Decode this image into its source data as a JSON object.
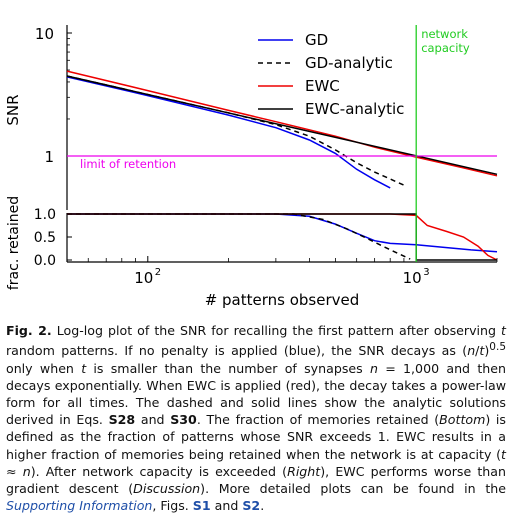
{
  "figure": {
    "chart_data": [
      {
        "type": "line",
        "panel": "top",
        "ylabel": "SNR",
        "xscale": "log",
        "yscale": "log",
        "xlim": [
          50,
          2000
        ],
        "ylim": [
          0.5,
          12
        ],
        "y_ticks": [
          {
            "value": 10,
            "label": "10"
          },
          {
            "value": 1,
            "label": "1"
          }
        ],
        "series": [
          {
            "name": "GD",
            "color": "#0000ee",
            "style": "solid",
            "x": [
              50,
              100,
              200,
              300,
              400,
              500,
              600,
              700,
              800
            ],
            "y": [
              4.4,
              3.1,
              2.15,
              1.7,
              1.35,
              1.05,
              0.78,
              0.64,
              0.55
            ]
          },
          {
            "name": "GD-analytic",
            "color": "#000000",
            "style": "dashed",
            "x": [
              50,
              100,
              200,
              300,
              400,
              500,
              600,
              700,
              800,
              900
            ],
            "y": [
              4.47,
              3.16,
              2.24,
              1.8,
              1.45,
              1.12,
              0.88,
              0.74,
              0.65,
              0.58
            ]
          },
          {
            "name": "EWC",
            "color": "#ee0000",
            "style": "solid",
            "x": [
              50,
              100,
              200,
              300,
              500,
              700,
              1000,
              1500,
              2000
            ],
            "y": [
              4.9,
              3.4,
              2.35,
              1.9,
              1.45,
              1.18,
              0.98,
              0.8,
              0.69
            ]
          },
          {
            "name": "EWC-analytic",
            "color": "#000000",
            "style": "solid",
            "x": [
              50,
              2000
            ],
            "y": [
              4.47,
              0.71
            ]
          }
        ],
        "annotations": [
          {
            "text": "limit of retention",
            "y": 1,
            "color": "#ee00ee"
          },
          {
            "text": "network capacity",
            "x": 1000,
            "color": "#22cc22"
          }
        ],
        "legend": "top-right"
      },
      {
        "type": "line",
        "panel": "bottom",
        "xlabel": "# patterns observed",
        "ylabel": "frac. retained",
        "xscale": "log",
        "xlim": [
          50,
          2000
        ],
        "ylim": [
          -0.05,
          1.1
        ],
        "x_ticks": [
          {
            "value": 100,
            "label": "10",
            "exp": "2"
          },
          {
            "value": 1000,
            "label": "10",
            "exp": "3"
          }
        ],
        "y_ticks": [
          {
            "value": 1.0,
            "label": "1.0"
          },
          {
            "value": 0.5,
            "label": "0.5"
          },
          {
            "value": 0.0,
            "label": "0.0"
          }
        ],
        "series": [
          {
            "name": "GD",
            "color": "#0000ee",
            "style": "solid",
            "x": [
              50,
              300,
              400,
              500,
              600,
              700,
              800,
              1000,
              1300,
              1600,
              2000
            ],
            "y": [
              1.0,
              1.0,
              0.95,
              0.78,
              0.58,
              0.42,
              0.36,
              0.33,
              0.27,
              0.22,
              0.18
            ]
          },
          {
            "name": "GD-analytic",
            "color": "#000000",
            "style": "dashed",
            "x": [
              50,
              350,
              450,
              550,
              650,
              750,
              850,
              950
            ],
            "y": [
              1.0,
              1.0,
              0.88,
              0.68,
              0.48,
              0.3,
              0.15,
              0.02
            ]
          },
          {
            "name": "EWC",
            "color": "#ee0000",
            "style": "solid",
            "x": [
              50,
              800,
              1000,
              1100,
              1300,
              1500,
              1700,
              1850,
              2000
            ],
            "y": [
              1.0,
              1.0,
              0.97,
              0.75,
              0.62,
              0.5,
              0.3,
              0.1,
              0.0
            ]
          },
          {
            "name": "EWC-analytic",
            "color": "#000000",
            "style": "solid",
            "x": [
              50,
              1000,
              1000,
              2000
            ],
            "y": [
              1.0,
              1.0,
              0.0,
              0.0
            ]
          }
        ]
      }
    ]
  },
  "caption": {
    "label": "Fig. 2.",
    "s1": " Log-log plot of the SNR for recalling the first pattern after observing ",
    "t1": "t",
    "s2": " random patterns. If no penalty is applied (blue), the SNR decays as (",
    "n1": "n",
    "s3": "/",
    "t2": "t",
    "s4": ")",
    "exp": "0.5",
    "s5": " only when ",
    "t3": "t",
    "s6": " is smaller than the number of synapses ",
    "n2": "n",
    "s7": " = 1,000 and then decays exponentially. When EWC is applied (red), the decay takes a power-law form for all times. The dashed and solid lines show the analytic solutions derived in Eqs. ",
    "eq1": "S28",
    "s8": " and ",
    "eq2": "S30",
    "s9": ". The fraction of memories retained (",
    "bottom": "Bottom",
    "s10": ") is defined as the fraction of patterns whose SNR exceeds 1. EWC results in a higher fraction of memories being retained when the network is at capacity (",
    "t4": "t",
    "s11": " ≈ ",
    "n3": "n",
    "s12": "). After network capacity is exceeded (",
    "right": "Right",
    "s13": "), EWC performs worse than gradient descent (",
    "discussion": "Discussion",
    "s14": "). More detailed plots can be found in the ",
    "si_link": "Supporting Information",
    "s15": ", Figs. ",
    "fig_s1": "S1",
    "s16": " and ",
    "fig_s2": "S2",
    "s17": "."
  }
}
